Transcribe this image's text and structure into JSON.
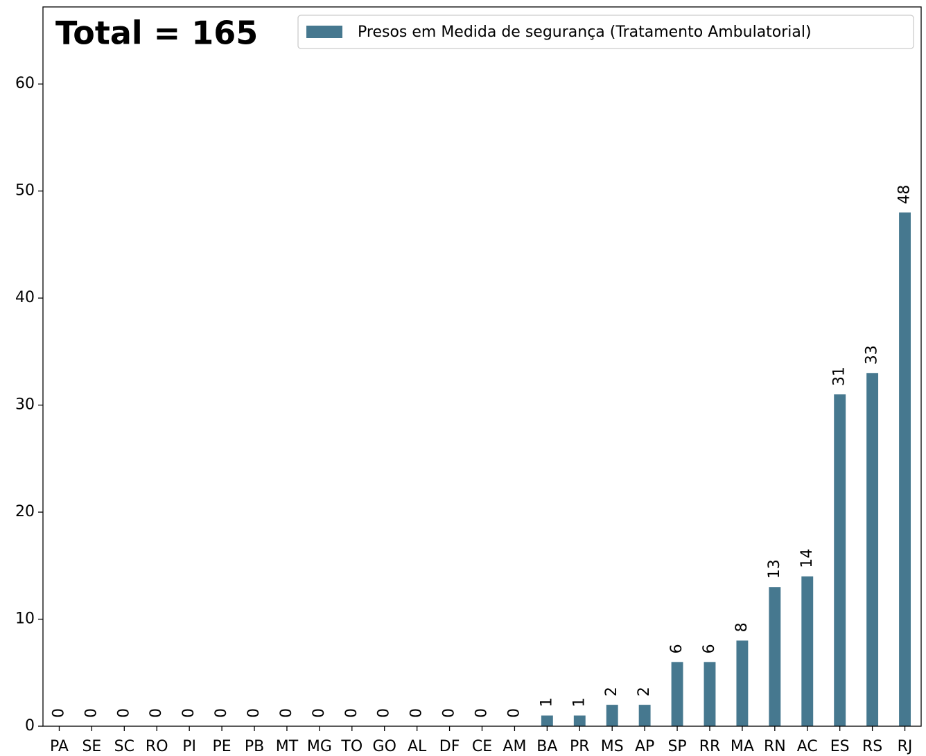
{
  "chart_data": {
    "type": "bar",
    "annotation": "Total = 165",
    "categories": [
      "PA",
      "SE",
      "SC",
      "RO",
      "PI",
      "PE",
      "PB",
      "MT",
      "MG",
      "TO",
      "GO",
      "AL",
      "DF",
      "CE",
      "AM",
      "BA",
      "PR",
      "MS",
      "AP",
      "SP",
      "RR",
      "MA",
      "RN",
      "AC",
      "ES",
      "RS",
      "RJ"
    ],
    "series": [
      {
        "name": "Presos em Medida de segurança (Tratamento Ambulatorial)",
        "color": "#46788f",
        "values": [
          0,
          0,
          0,
          0,
          0,
          0,
          0,
          0,
          0,
          0,
          0,
          0,
          0,
          0,
          0,
          1,
          1,
          2,
          2,
          6,
          6,
          8,
          13,
          14,
          31,
          33,
          48
        ]
      }
    ],
    "ylim": [
      0,
      67.2
    ],
    "yticks": [
      0,
      10,
      20,
      30,
      40,
      50,
      60
    ],
    "grid": false,
    "legend": "upper right"
  }
}
